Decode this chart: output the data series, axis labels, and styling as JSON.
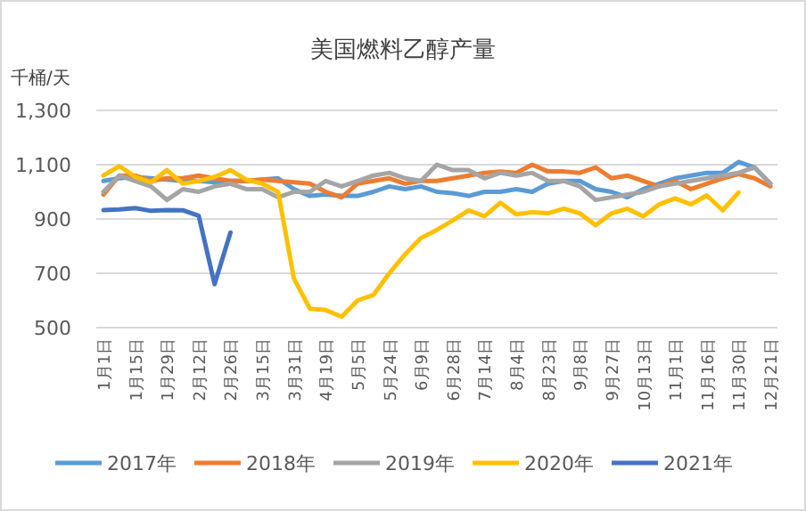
{
  "chart_data": {
    "type": "line",
    "title": "美国燃料乙醇产量",
    "ylabel": "千桶/天",
    "categories": [
      "1月1日",
      null,
      "1月15日",
      null,
      "1月29日",
      null,
      "2月12日",
      null,
      "2月26日",
      null,
      "3月15日",
      null,
      "3月31日",
      null,
      "4月19日",
      null,
      "5月5日",
      null,
      "5月24日",
      null,
      "6月9日",
      null,
      "6月28日",
      null,
      "7月14日",
      null,
      "8月4日",
      null,
      "8月23日",
      null,
      "9月8日",
      null,
      "9月27日",
      null,
      "10月13日",
      null,
      "11月1日",
      null,
      "11月16日",
      null,
      "11月30日",
      null,
      "12月21日"
    ],
    "ylim": [
      500,
      1300
    ],
    "yticks": [
      500,
      700,
      900,
      {
        "value": 1100,
        "label": "1,100"
      },
      {
        "value": 1300,
        "label": "1,300"
      }
    ],
    "grid": "y",
    "legend": "bottom",
    "marker": "none",
    "line_style": "solid",
    "series": [
      {
        "name": "2017年",
        "color": "#5b9bd5",
        "values": [
          1040,
          1050,
          1055,
          1050,
          1045,
          1040,
          1040,
          1035,
          1040,
          1040,
          1045,
          1050,
          1010,
          985,
          990,
          985,
          985,
          1000,
          1020,
          1010,
          1020,
          1000,
          995,
          985,
          1000,
          1000,
          1010,
          1000,
          1030,
          1040,
          1040,
          1010,
          1000,
          980,
          1010,
          1030,
          1050,
          1060,
          1070,
          1070,
          1110,
          1090,
          1030
        ]
      },
      {
        "name": "2018年",
        "color": "#ed7d31",
        "values": [
          990,
          1060,
          1060,
          1040,
          1050,
          1050,
          1060,
          1050,
          1040,
          1040,
          1045,
          1040,
          1035,
          1030,
          1000,
          980,
          1030,
          1040,
          1050,
          1030,
          1040,
          1040,
          1050,
          1060,
          1070,
          1075,
          1070,
          1100,
          1075,
          1075,
          1070,
          1090,
          1050,
          1060,
          1040,
          1020,
          1040,
          1010,
          1030,
          1050,
          1065,
          1050,
          1020
        ]
      },
      {
        "name": "2019年",
        "color": "#a5a5a5",
        "values": [
          1000,
          1060,
          1040,
          1020,
          970,
          1010,
          1000,
          1020,
          1030,
          1010,
          1010,
          980,
          1000,
          1000,
          1040,
          1020,
          1040,
          1060,
          1070,
          1050,
          1040,
          1100,
          1080,
          1080,
          1050,
          1070,
          1060,
          1070,
          1040,
          1040,
          1020,
          970,
          980,
          990,
          1000,
          1020,
          1030,
          1040,
          1050,
          1060,
          1070,
          1090,
          1030
        ]
      },
      {
        "name": "2020年",
        "color": "#ffc000",
        "values": [
          1060,
          1095,
          1055,
          1035,
          1080,
          1030,
          1040,
          1055,
          1080,
          1045,
          1030,
          1000,
          680,
          570,
          565,
          540,
          600,
          620,
          700,
          770,
          830,
          860,
          895,
          932,
          910,
          960,
          917,
          925,
          921,
          938,
          921,
          877,
          921,
          938,
          910,
          954,
          976,
          954,
          987,
          932,
          998,
          null,
          null
        ]
      },
      {
        "name": "2021年",
        "color": "#4472c4",
        "values": [
          933,
          935,
          940,
          930,
          933,
          932,
          912,
          660,
          850,
          null,
          null,
          null,
          null,
          null,
          null,
          null,
          null,
          null,
          null,
          null,
          null,
          null,
          null,
          null,
          null,
          null,
          null,
          null,
          null,
          null,
          null,
          null,
          null,
          null,
          null,
          null,
          null,
          null,
          null,
          null,
          null,
          null,
          null
        ]
      }
    ]
  }
}
